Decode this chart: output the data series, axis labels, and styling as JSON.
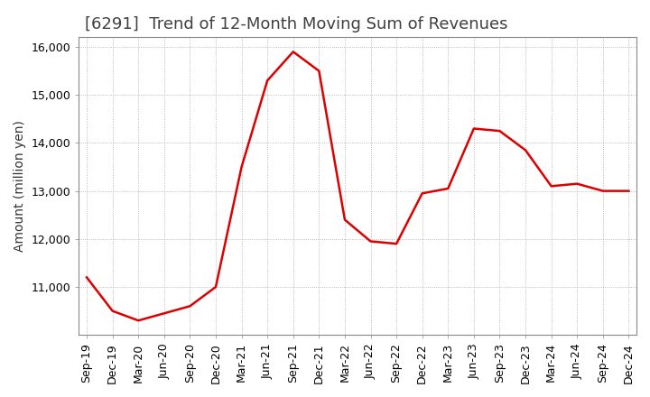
{
  "title": "[6291]  Trend of 12-Month Moving Sum of Revenues",
  "ylabel": "Amount (million yen)",
  "background_color": "#ffffff",
  "grid_color": "#aaaaaa",
  "line_color": "#dd0000",
  "x_labels": [
    "Sep-19",
    "Dec-19",
    "Mar-20",
    "Jun-20",
    "Sep-20",
    "Dec-20",
    "Mar-21",
    "Jun-21",
    "Sep-21",
    "Dec-21",
    "Mar-22",
    "Jun-22",
    "Sep-22",
    "Dec-22",
    "Mar-23",
    "Jun-23",
    "Sep-23",
    "Dec-23",
    "Mar-24",
    "Jun-24",
    "Sep-24",
    "Dec-24"
  ],
  "values": [
    11200,
    10500,
    10300,
    10450,
    10600,
    11000,
    13500,
    15300,
    15900,
    15500,
    12400,
    11950,
    11900,
    12950,
    13050,
    14300,
    14250,
    13850,
    13100,
    13150,
    13000,
    13000
  ],
  "ylim": [
    10000,
    16200
  ],
  "yticks": [
    11000,
    12000,
    13000,
    14000,
    15000,
    16000
  ],
  "title_fontsize": 13,
  "title_color": "#404040",
  "label_fontsize": 10,
  "tick_fontsize": 9
}
